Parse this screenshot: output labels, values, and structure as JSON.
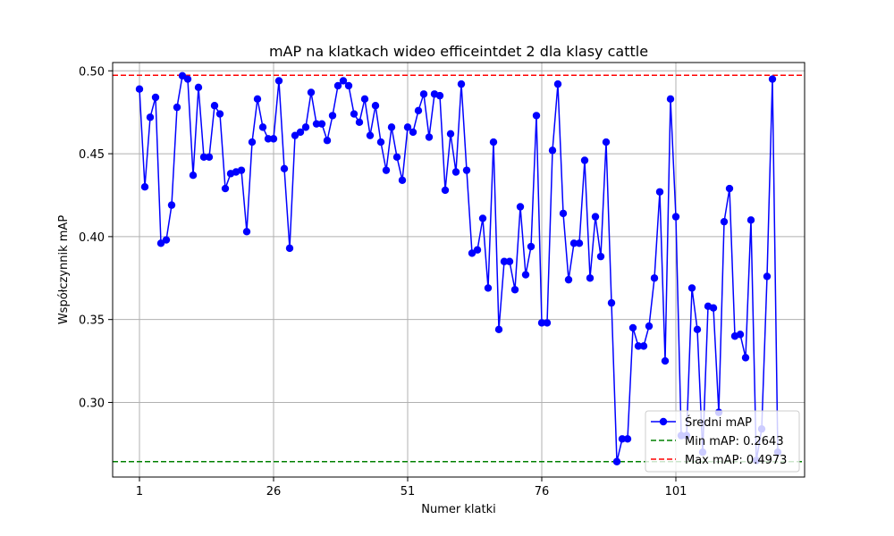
{
  "chart_data": {
    "type": "line",
    "title": "mAP na klatkach wideo efficeintdet 2 dla klasy cattle",
    "xlabel": "Numer klatki",
    "ylabel": "Współczynnik mAP",
    "xlim": [
      -4,
      125
    ],
    "ylim": [
      0.255,
      0.505
    ],
    "xticks": [
      1,
      26,
      51,
      76,
      101
    ],
    "yticks": [
      0.3,
      0.35,
      0.4,
      0.45,
      0.5
    ],
    "ytick_labels": [
      "0.30",
      "0.35",
      "0.40",
      "0.45",
      "0.50"
    ],
    "grid": true,
    "legend_position": "lower-right",
    "series": [
      {
        "name": "Średni mAP",
        "color": "#0000ff",
        "marker": "circle",
        "x": [
          1,
          2,
          3,
          4,
          5,
          6,
          7,
          8,
          9,
          10,
          11,
          12,
          13,
          14,
          15,
          16,
          17,
          18,
          19,
          20,
          21,
          22,
          23,
          24,
          25,
          26,
          27,
          28,
          29,
          30,
          31,
          32,
          33,
          34,
          35,
          36,
          37,
          38,
          39,
          40,
          41,
          42,
          43,
          44,
          45,
          46,
          47,
          48,
          49,
          50,
          51,
          52,
          53,
          54,
          55,
          56,
          57,
          58,
          59,
          60,
          61,
          62,
          63,
          64,
          65,
          66,
          67,
          68,
          69,
          70,
          71,
          72,
          73,
          74,
          75,
          76,
          77,
          78,
          79,
          80,
          81,
          82,
          83,
          84,
          85,
          86,
          87,
          88,
          89,
          90,
          91,
          92,
          93,
          94,
          95,
          96,
          97,
          98,
          99,
          100,
          101,
          102,
          103,
          104,
          105,
          106,
          107,
          108,
          109,
          110,
          111,
          112,
          113,
          114,
          115,
          116,
          117,
          118,
          119,
          120
        ],
        "values": [
          0.489,
          0.43,
          0.472,
          0.484,
          0.396,
          0.398,
          0.419,
          0.478,
          0.497,
          0.495,
          0.437,
          0.49,
          0.448,
          0.448,
          0.479,
          0.474,
          0.429,
          0.438,
          0.439,
          0.44,
          0.403,
          0.457,
          0.483,
          0.466,
          0.459,
          0.459,
          0.494,
          0.441,
          0.393,
          0.461,
          0.463,
          0.466,
          0.487,
          0.468,
          0.468,
          0.458,
          0.473,
          0.491,
          0.494,
          0.491,
          0.474,
          0.469,
          0.483,
          0.461,
          0.479,
          0.457,
          0.44,
          0.466,
          0.448,
          0.434,
          0.466,
          0.463,
          0.476,
          0.486,
          0.46,
          0.486,
          0.485,
          0.428,
          0.462,
          0.439,
          0.492,
          0.44,
          0.39,
          0.392,
          0.411,
          0.369,
          0.457,
          0.344,
          0.385,
          0.385,
          0.368,
          0.418,
          0.377,
          0.394,
          0.473,
          0.348,
          0.348,
          0.452,
          0.492,
          0.414,
          0.374,
          0.396,
          0.396,
          0.446,
          0.375,
          0.412,
          0.388,
          0.457,
          0.36,
          0.2643,
          0.278,
          0.278,
          0.345,
          0.334,
          0.334,
          0.346,
          0.375,
          0.427,
          0.325,
          0.483,
          0.412,
          0.28,
          0.28,
          0.369,
          0.344,
          0.27,
          0.358,
          0.357,
          0.294,
          0.409,
          0.429,
          0.34,
          0.341,
          0.327,
          0.41,
          0.265,
          0.284,
          0.376,
          0.495,
          0.27
        ]
      }
    ],
    "reference_lines": [
      {
        "name": "Min mAP: 0.2643",
        "value": 0.2643,
        "color": "#008000",
        "style": "dashed"
      },
      {
        "name": "Max mAP: 0.4973",
        "value": 0.4973,
        "color": "#ff0000",
        "style": "dashed"
      }
    ],
    "colors": {
      "grid": "#b0b0b0",
      "axes": "#000000"
    }
  }
}
